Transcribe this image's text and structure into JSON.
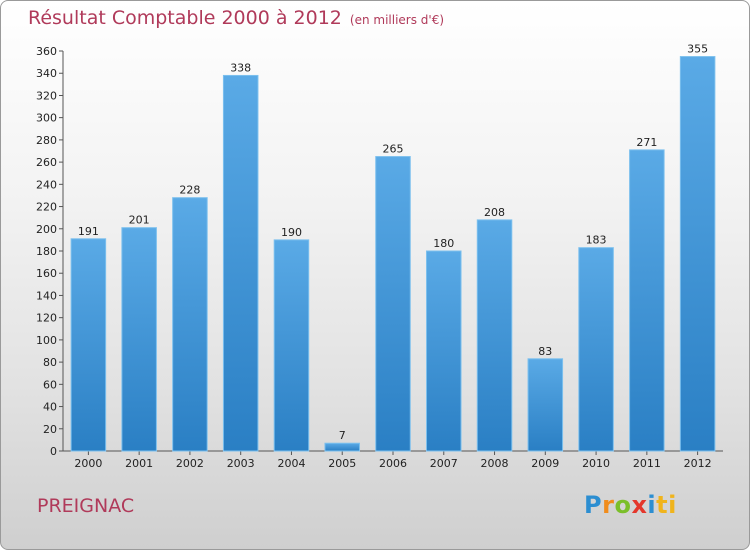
{
  "header": {
    "title": "Résultat Comptable 2000 à 2012",
    "subtitle": "(en milliers d'€)"
  },
  "footer": {
    "town": "PREIGNAC",
    "logo_letters": [
      "P",
      "r",
      "o",
      "x",
      "i",
      "t",
      "i"
    ]
  },
  "colors": {
    "title": "#b03a5a",
    "bar_top": "#5aaae6",
    "bar_bottom": "#2a7fc4"
  },
  "chart_data": {
    "type": "bar",
    "title": "Résultat Comptable 2000 à 2012",
    "subtitle": "(en milliers d'€)",
    "xlabel": "",
    "ylabel": "",
    "categories": [
      "2000",
      "2001",
      "2002",
      "2003",
      "2004",
      "2005",
      "2006",
      "2007",
      "2008",
      "2009",
      "2010",
      "2011",
      "2012"
    ],
    "values": [
      191,
      201,
      228,
      338,
      190,
      7,
      265,
      180,
      208,
      83,
      183,
      271,
      355
    ],
    "ylim": [
      0,
      360
    ],
    "yticks": [
      0,
      20,
      40,
      60,
      80,
      100,
      120,
      140,
      160,
      180,
      200,
      220,
      240,
      260,
      280,
      300,
      320,
      340,
      360
    ],
    "grid": false,
    "legend": "none"
  }
}
